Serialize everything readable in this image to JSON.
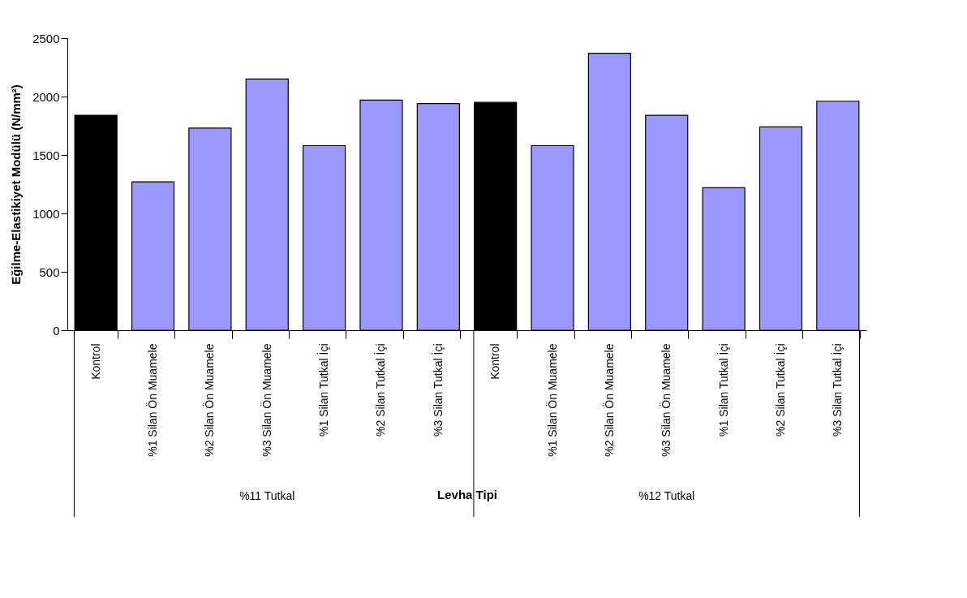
{
  "chart_data": {
    "type": "bar",
    "xlabel": "Levha Tipi",
    "ylabel": "Eğilme-Elastikiyet Modülü (N/mm²)",
    "categories": [
      "Kontrol",
      "%1 Silan Ön Muamele",
      "%2 Silan Ön Muamele",
      "%3 Silan Ön Muamele",
      "%1 Silan Tutkal İçi",
      "%2 Silan Tutkal İçi",
      "%3 Silan Tutkal İçi",
      "Kontrol",
      "%1 Silan Ön Muamele",
      "%2 Silan Ön Muamele",
      "%3 Silan Ön Muamele",
      "%1 Silan Tutkal İçi",
      "%2 Silan Tutkal İçi",
      "%3 Silan Tutkal İçi"
    ],
    "values": [
      1840,
      1270,
      1730,
      2150,
      1580,
      1970,
      1940,
      1950,
      1580,
      2370,
      1840,
      1220,
      1740,
      1960
    ],
    "colors": [
      "#000000",
      "#9999ff",
      "#9999ff",
      "#9999ff",
      "#9999ff",
      "#9999ff",
      "#9999ff",
      "#000000",
      "#9999ff",
      "#9999ff",
      "#9999ff",
      "#9999ff",
      "#9999ff",
      "#9999ff"
    ],
    "annotations": [
      "%11 Tutkal",
      "%12 Tutkal"
    ],
    "ylim": [
      0,
      2500
    ],
    "yticks": [
      0,
      500,
      1000,
      1500,
      2000,
      2500
    ],
    "grid": false
  }
}
